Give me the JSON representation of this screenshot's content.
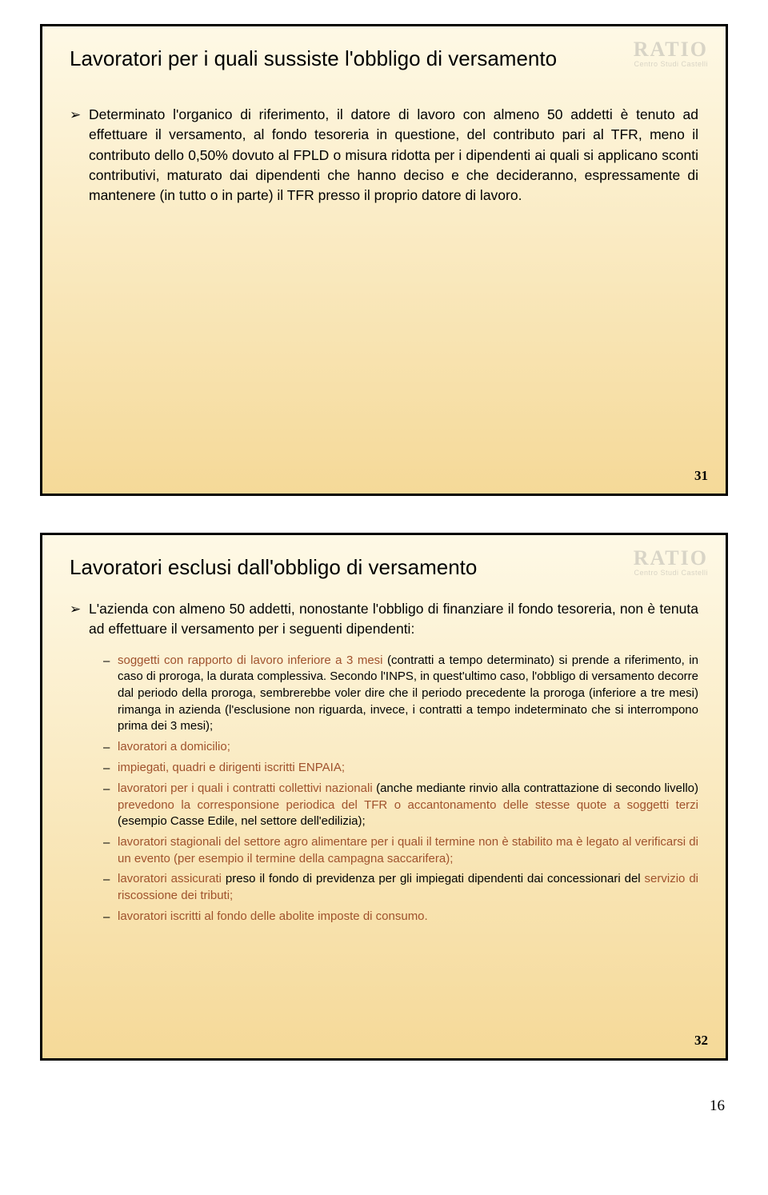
{
  "slide1": {
    "title": "Lavoratori per i quali sussiste l'obbligo di versamento",
    "watermark": "RATIO",
    "watermark_sub": "Centro Studi Castelli",
    "body": "Determinato l'organico di riferimento, il datore di lavoro con almeno 50 addetti è tenuto ad effettuare il versamento, al fondo tesoreria in questione, del contributo pari al TFR, meno il contributo dello 0,50% dovuto al FPLD o misura ridotta per i dipendenti ai quali si applicano sconti contributivi, maturato dai dipendenti che hanno deciso e che decideranno, espressamente di mantenere (in tutto o in parte) il TFR presso il proprio datore di lavoro.",
    "page": "31"
  },
  "slide2": {
    "title": "Lavoratori esclusi dall'obbligo di versamento",
    "watermark": "RATIO",
    "watermark_sub": "Centro Studi Castelli",
    "intro": "L'azienda con almeno 50 addetti, nonostante l'obbligo di finanziare il fondo tesoreria, non è tenuta ad effettuare il versamento per i seguenti dipendenti:",
    "items": [
      {
        "pre": "soggetti con rapporto di lavoro inferiore a 3 mesi",
        "mid": " (contratti a tempo determinato) si prende a riferimento, in caso di proroga, la durata complessiva. Secondo l'INPS, in quest'ultimo caso, l'obbligo di versamento decorre dal periodo della proroga, sembrerebbe voler dire che il periodo precedente la proroga (inferiore a tre mesi) rimanga in azienda (l'esclusione non riguarda, invece, i contratti a tempo indeterminato che si interrompono prima dei 3 mesi);",
        "post": ""
      },
      {
        "pre": "lavoratori a domicilio;",
        "mid": "",
        "post": ""
      },
      {
        "pre": "impiegati, quadri e dirigenti iscritti ENPAIA;",
        "mid": "",
        "post": ""
      },
      {
        "pre": "lavoratori per i quali i contratti collettivi nazionali",
        "mid": " (anche mediante rinvio alla contrattazione di secondo livello) ",
        "post": "prevedono la corresponsione periodica del TFR o accantonamento delle stesse quote a soggetti terzi",
        "tail": " (esempio Casse Edile, nel settore dell'edilizia);"
      },
      {
        "pre": "lavoratori stagionali del settore agro alimentare per i quali il termine non è stabilito ma è legato al verificarsi di un evento (per esempio il termine della campagna saccarifera);",
        "mid": "",
        "post": ""
      },
      {
        "pre": "lavoratori assicurati",
        "mid": " preso il fondo di previdenza per gli impiegati dipendenti dai concessionari del ",
        "post": "servizio di riscossione dei tributi;",
        "tail": ""
      },
      {
        "pre": "lavoratori iscritti al fondo delle abolite imposte di consumo.",
        "mid": "",
        "post": ""
      }
    ],
    "page": "32"
  },
  "footer": "16"
}
